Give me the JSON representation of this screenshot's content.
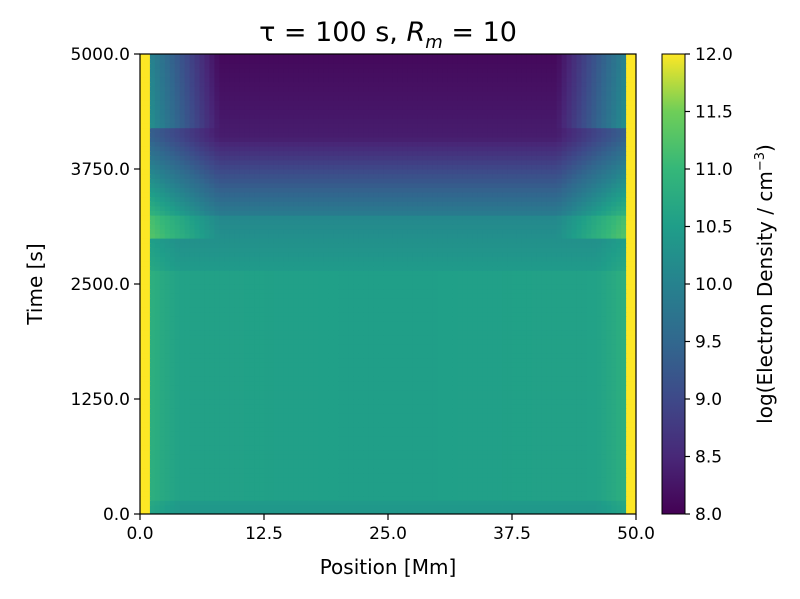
{
  "chart_data": {
    "type": "heatmap",
    "title": {
      "prefix": "τ = 100 s, ",
      "symbol": "R",
      "subscript": "m",
      "suffix": " = 10"
    },
    "xlabel": "Position [Mm]",
    "ylabel": "Time [s]",
    "colorbar_label": {
      "main": "log(Electron Density / cm",
      "superscript": "−3",
      "close": ")"
    },
    "xlim": [
      0.0,
      50.0
    ],
    "ylim": [
      0.0,
      5000.0
    ],
    "clim": [
      8.0,
      12.0
    ],
    "colormap": "viridis",
    "xticks": [
      0.0,
      12.5,
      25.0,
      37.5,
      50.0
    ],
    "xtick_labels": [
      "0.0",
      "12.5",
      "25.0",
      "37.5",
      "50.0"
    ],
    "yticks": [
      0.0,
      1250.0,
      2500.0,
      3750.0,
      5000.0
    ],
    "ytick_labels": [
      "0.0",
      "1250.0",
      "2500.0",
      "3750.0",
      "5000.0"
    ],
    "cticks": [
      8.0,
      8.5,
      9.0,
      9.5,
      10.0,
      10.5,
      11.0,
      11.5,
      12.0
    ],
    "ctick_labels": [
      "8.0",
      "8.5",
      "9.0",
      "9.5",
      "10.0",
      "10.5",
      "11.0",
      "11.5",
      "12.0"
    ],
    "density_profile": {
      "description_values": [
        {
          "time_range": [
            0,
            150
          ],
          "value_center": 10.4
        },
        {
          "time_range": [
            150,
            2650
          ],
          "value_center": 10.55
        },
        {
          "time_range": [
            2650,
            3250
          ],
          "value_center": 10.2
        },
        {
          "time_range": [
            3250,
            4100
          ],
          "value_center": 9.0
        },
        {
          "time_range": [
            4100,
            5000
          ],
          "value_center": 8.1
        }
      ],
      "footpoint_value": 12.0,
      "footpoint_width_mm": 1.0
    }
  }
}
